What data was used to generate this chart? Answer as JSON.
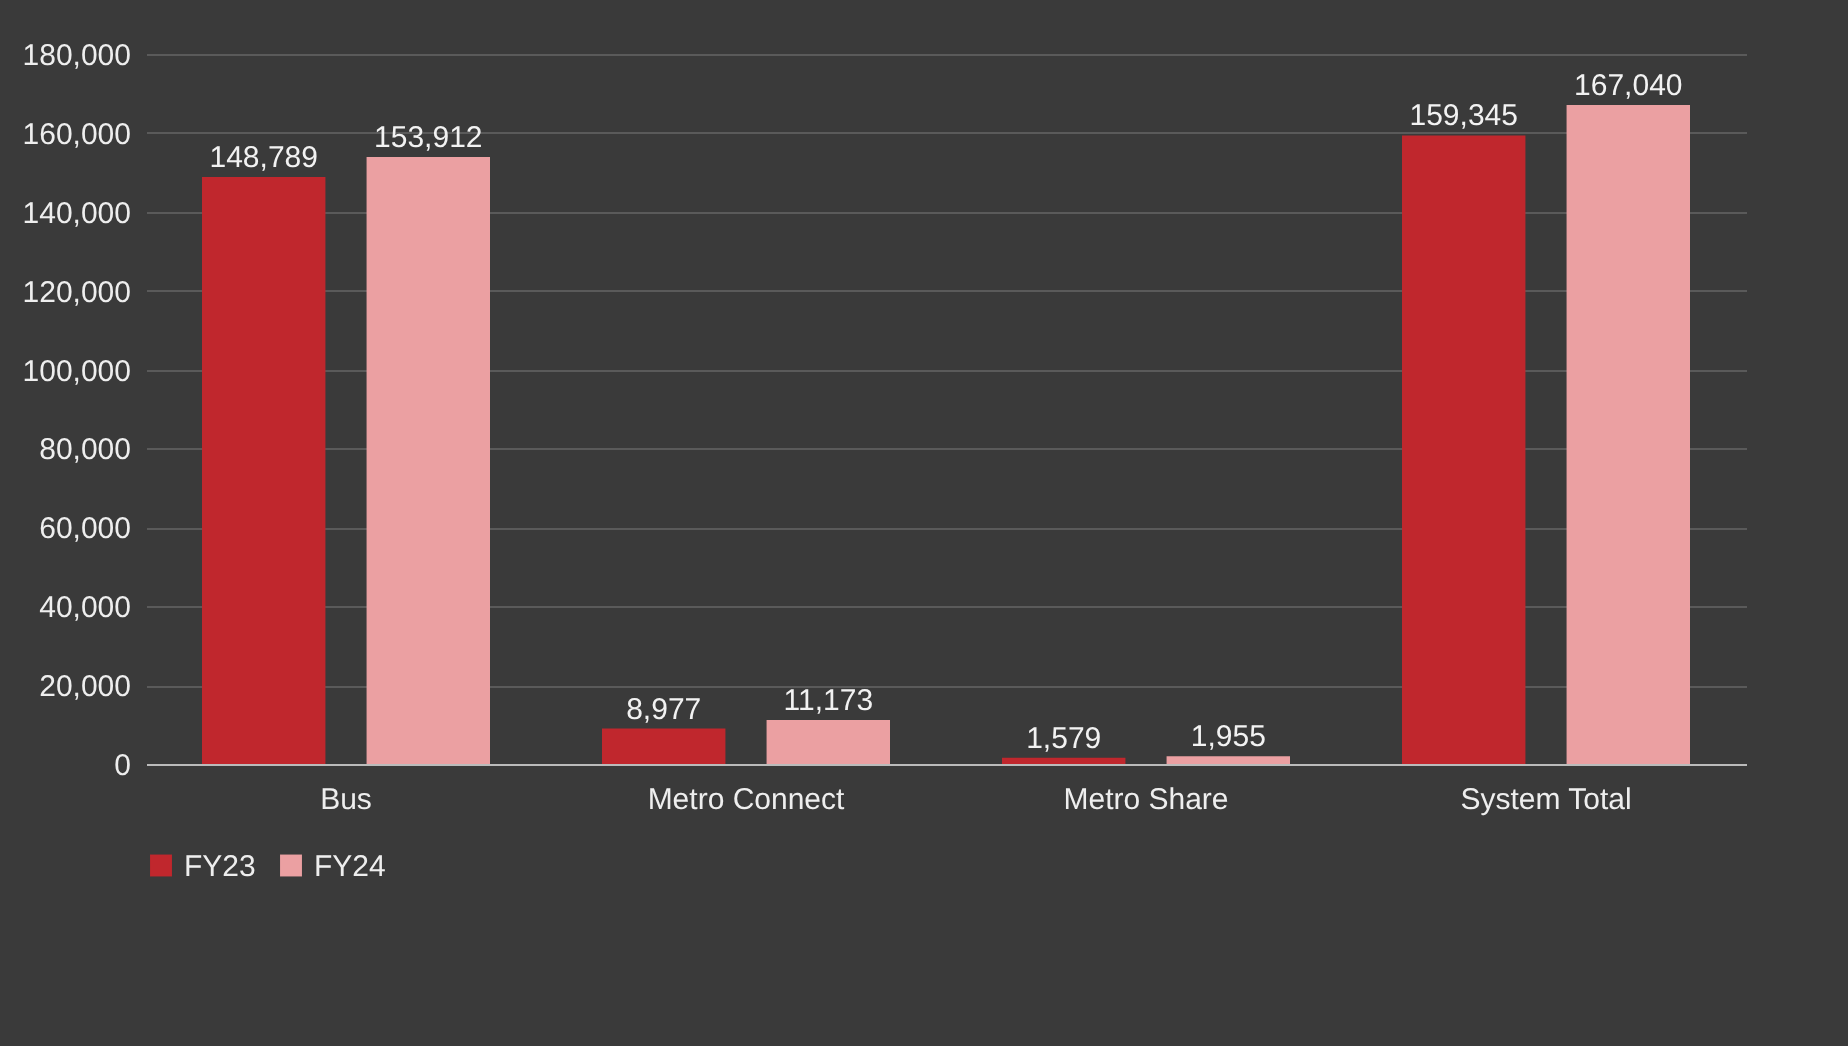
{
  "chart_data": {
    "type": "bar",
    "categories": [
      "Bus",
      "Metro Connect",
      "Metro Share",
      "System Total"
    ],
    "series": [
      {
        "name": "FY23",
        "color": "#c0272d",
        "values": [
          148789,
          8977,
          1579,
          159345
        ]
      },
      {
        "name": "FY24",
        "color": "#eba0a2",
        "values": [
          153912,
          11173,
          1955,
          167040
        ]
      }
    ],
    "ylim": [
      0,
      180000
    ],
    "yticks": [
      0,
      {
        "value": 20000,
        "label": "20,000"
      },
      {
        "value": 40000,
        "label": "40,000"
      },
      {
        "value": 60000,
        "label": "60,000"
      },
      {
        "value": 80000,
        "label": "80,000"
      },
      {
        "value": 100000,
        "label": "100,000"
      },
      {
        "value": 120000,
        "label": "120,000"
      },
      {
        "value": 140000,
        "label": "140,000"
      },
      {
        "value": 160000,
        "label": "160,000"
      },
      {
        "value": 180000,
        "label": "180,000"
      }
    ],
    "value_labels": [
      [
        "148,789",
        "8,977",
        "1,579",
        "159,345"
      ],
      [
        "153,912",
        "11,173",
        "1,955",
        "167,040"
      ]
    ],
    "grid": "y",
    "legend": "bottom"
  }
}
